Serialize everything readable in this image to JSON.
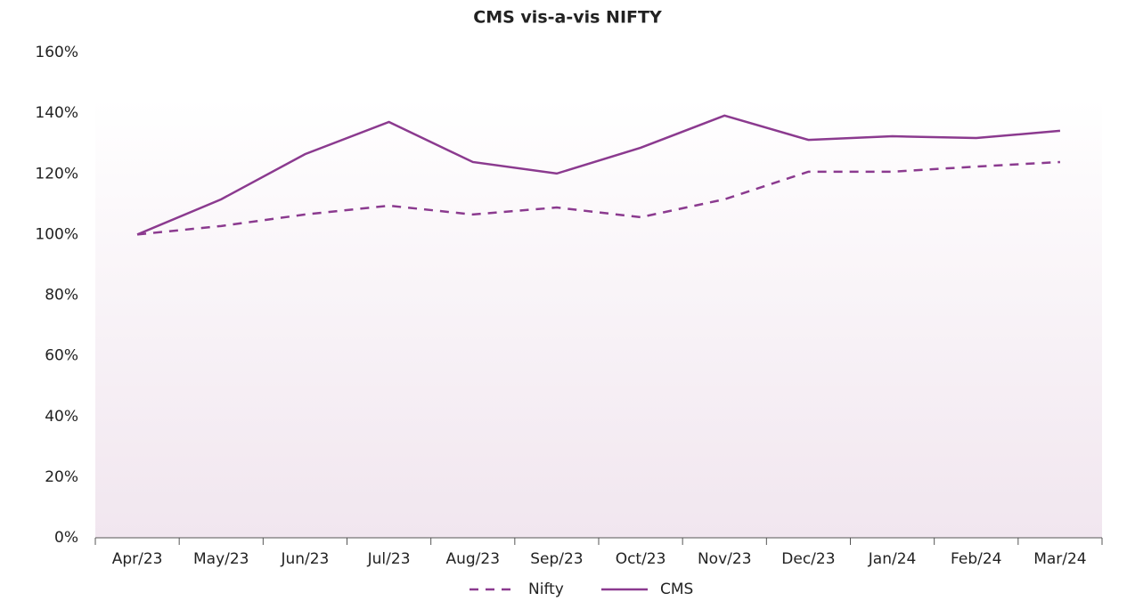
{
  "chart_data": {
    "type": "line",
    "title": "CMS vis-a-vis NIFTY",
    "categories": [
      "Apr/23",
      "May/23",
      "Jun/23",
      "Jul/23",
      "Aug/23",
      "Sep/23",
      "Oct/23",
      "Nov/23",
      "Dec/23",
      "Jan/24",
      "Feb/24",
      "Mar/24"
    ],
    "series": [
      {
        "name": "Nifty",
        "color": "#8b3a8f",
        "line_style": "dashed",
        "values": [
          100,
          102.8,
          106.6,
          109.5,
          106.6,
          108.9,
          105.7,
          111.6,
          120.7,
          120.7,
          122.4,
          123.9
        ]
      },
      {
        "name": "CMS",
        "color": "#8b3a8f",
        "line_style": "solid",
        "values": [
          100,
          111.6,
          126.5,
          137.1,
          123.9,
          120.1,
          128.6,
          139.2,
          131.2,
          132.4,
          131.8,
          134.2
        ]
      }
    ],
    "ylim": [
      0,
      160
    ],
    "yticks": [
      {
        "value": 0,
        "label": "0%"
      },
      {
        "value": 20,
        "label": "20%"
      },
      {
        "value": 40,
        "label": "40%"
      },
      {
        "value": 60,
        "label": "60%"
      },
      {
        "value": 80,
        "label": "80%"
      },
      {
        "value": 100,
        "label": "100%"
      },
      {
        "value": 120,
        "label": "120%"
      },
      {
        "value": 140,
        "label": "140%"
      },
      {
        "value": 160,
        "label": "160%"
      }
    ],
    "grid": false,
    "legend": "bottom"
  }
}
